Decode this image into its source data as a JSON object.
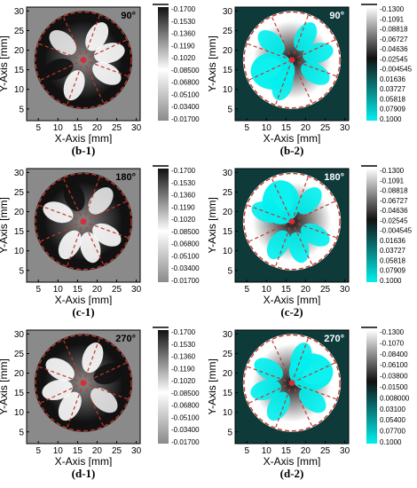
{
  "chart_data": [
    {
      "type": "heatmap",
      "id": "b-1",
      "caption": "(b-1)",
      "angle_label": "90°",
      "colormap": "gray",
      "xlabel": "X-Axis [mm]",
      "ylabel": "Y-Axis [mm]",
      "xticks": [
        "5",
        "10",
        "15",
        "20",
        "25",
        "30"
      ],
      "yticks": [
        "5",
        "10",
        "15",
        "20",
        "25",
        "30"
      ],
      "xlim": [
        2,
        31
      ],
      "ylim": [
        2,
        31
      ],
      "colorbar_ticks": [
        "-0.1700",
        "-0.1530",
        "-0.1360",
        "-0.1190",
        "-0.1020",
        "-0.08500",
        "-0.06800",
        "-0.05100",
        "-0.03400",
        "-0.01700"
      ],
      "colors": {
        "low": "#111111",
        "mid": "#8a8a8a",
        "high": "#ffffff"
      }
    },
    {
      "type": "heatmap",
      "id": "b-2",
      "caption": "(b-2)",
      "angle_label": "90°",
      "colormap": "black-white-cyan",
      "xlabel": "X-Axis [mm]",
      "ylabel": "Y-Axis [mm]",
      "xticks": [
        "5",
        "10",
        "15",
        "20",
        "25",
        "30"
      ],
      "yticks": [
        "5",
        "10",
        "15",
        "20",
        "25",
        "30"
      ],
      "xlim": [
        2,
        31
      ],
      "ylim": [
        2,
        31
      ],
      "colorbar_ticks": [
        "-0.1300",
        "-0.1091",
        "-0.08818",
        "-0.06727",
        "-0.04636",
        "-0.02545",
        "-0.004545",
        "0.01636",
        "0.03727",
        "0.05818",
        "0.07909",
        "0.1000"
      ],
      "colors": {
        "low": "#ffffff",
        "mid": "#111111",
        "high": "#00f0f0"
      }
    },
    {
      "type": "heatmap",
      "id": "c-1",
      "caption": "(c-1)",
      "angle_label": "180°",
      "colormap": "gray",
      "xlabel": "X-Axis [mm]",
      "ylabel": "Y-Axis [mm]",
      "xticks": [
        "5",
        "10",
        "15",
        "20",
        "25",
        "30"
      ],
      "yticks": [
        "5",
        "10",
        "15",
        "20",
        "25",
        "30"
      ],
      "xlim": [
        2,
        31
      ],
      "ylim": [
        2,
        31
      ],
      "colorbar_ticks": [
        "-0.1700",
        "-0.1530",
        "-0.1360",
        "-0.1190",
        "-0.1020",
        "-0.08500",
        "-0.06800",
        "-0.05100",
        "-0.03400",
        "-0.01700"
      ],
      "colors": {
        "low": "#111111",
        "mid": "#8a8a8a",
        "high": "#ffffff"
      }
    },
    {
      "type": "heatmap",
      "id": "c-2",
      "caption": "(c-2)",
      "angle_label": "180°",
      "colormap": "black-white-cyan",
      "xlabel": "X-Axis [mm]",
      "ylabel": "Y-Axis [mm]",
      "xticks": [
        "5",
        "10",
        "15",
        "20",
        "25",
        "30"
      ],
      "yticks": [
        "5",
        "10",
        "15",
        "20",
        "25",
        "30"
      ],
      "xlim": [
        2,
        31
      ],
      "ylim": [
        2,
        31
      ],
      "colorbar_ticks": [
        "-0.1300",
        "-0.1091",
        "-0.08818",
        "-0.06727",
        "-0.04636",
        "-0.02545",
        "-0.004545",
        "0.01636",
        "0.03727",
        "0.05818",
        "0.07909",
        "0.1000"
      ],
      "colors": {
        "low": "#ffffff",
        "mid": "#111111",
        "high": "#00f0f0"
      }
    },
    {
      "type": "heatmap",
      "id": "d-1",
      "caption": "(d-1)",
      "angle_label": "270°",
      "colormap": "gray",
      "xlabel": "X-Axis [mm]",
      "ylabel": "Y-Axis [mm]",
      "xticks": [
        "5",
        "10",
        "15",
        "20",
        "25",
        "30"
      ],
      "yticks": [
        "5",
        "10",
        "15",
        "20",
        "25",
        "30"
      ],
      "xlim": [
        2,
        31
      ],
      "ylim": [
        2,
        31
      ],
      "colorbar_ticks": [
        "-0.1700",
        "-0.1530",
        "-0.1360",
        "-0.1190",
        "-0.1020",
        "-0.08500",
        "-0.06800",
        "-0.05100",
        "-0.03400",
        "-0.01700"
      ],
      "colors": {
        "low": "#111111",
        "mid": "#8a8a8a",
        "high": "#ffffff"
      }
    },
    {
      "type": "heatmap",
      "id": "d-2",
      "caption": "(d-2)",
      "angle_label": "270°",
      "colormap": "black-white-cyan",
      "xlabel": "X-Axis [mm]",
      "ylabel": "Y-Axis [mm]",
      "xticks": [
        "5",
        "10",
        "15",
        "20",
        "25",
        "30"
      ],
      "yticks": [
        "5",
        "10",
        "15",
        "20",
        "25",
        "30"
      ],
      "xlim": [
        2,
        31
      ],
      "ylim": [
        2,
        31
      ],
      "colorbar_ticks": [
        "-0.1300",
        "-0.1070",
        "-0.08400",
        "-0.06100",
        "-0.03800",
        "-0.01500",
        "0.008000",
        "0.03100",
        "0.05400",
        "0.07700",
        "0.1000"
      ],
      "colors": {
        "low": "#ffffff",
        "mid": "#111111",
        "high": "#00f0f0"
      }
    }
  ],
  "overlay": {
    "circle_color": "#c0392b",
    "mark_color": "#e0283c"
  }
}
